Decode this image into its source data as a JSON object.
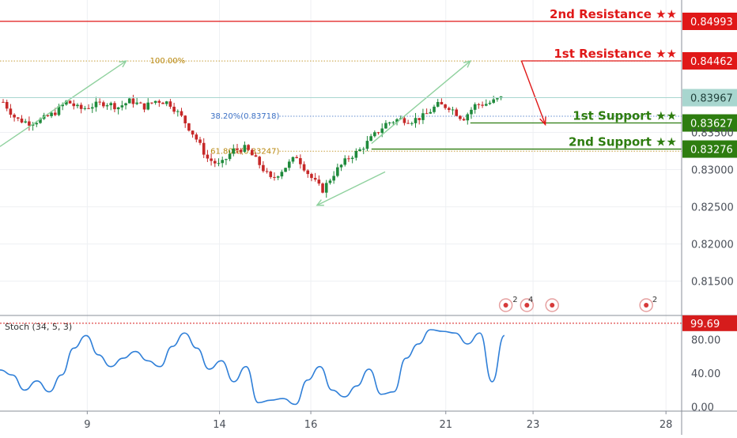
{
  "chart_data": [
    {
      "type": "candlestick",
      "xlabel": "",
      "ylabel": "",
      "x_ticks": [
        "9",
        "14",
        "16",
        "21",
        "23",
        "28"
      ],
      "y_ticks": [
        "0.83000",
        "0.82500",
        "0.82000",
        "0.81500",
        "0.83500"
      ],
      "ylim": [
        0.8105,
        0.8528
      ],
      "price_path": [
        0.8391,
        0.8368,
        0.8363,
        0.8367,
        0.8376,
        0.8392,
        0.8381,
        0.8386,
        0.839,
        0.8384,
        0.8393,
        0.8384,
        0.8393,
        0.839,
        0.837,
        0.8345,
        0.8315,
        0.8305,
        0.8326,
        0.8329,
        0.8309,
        0.8286,
        0.8302,
        0.8318,
        0.8292,
        0.8272,
        0.8297,
        0.8315,
        0.8327,
        0.8345,
        0.8362,
        0.8368,
        0.8366,
        0.8372,
        0.8387,
        0.8384,
        0.8368,
        0.8387,
        0.8389,
        0.8396
      ],
      "levels": [
        {
          "label": "2nd Resistance ★★",
          "value_label": "0.84993",
          "value": 0.84993,
          "color": "#e01818"
        },
        {
          "label": "1st Resistance ★★",
          "value_label": "0.84462",
          "value": 0.84462,
          "color": "#e01818"
        },
        {
          "label": "1st Support ★★",
          "value_label": "0.83627",
          "value": 0.83627,
          "color": "#2e7d10"
        },
        {
          "label": "2nd Support ★★",
          "value_label": "0.83276",
          "value": 0.83276,
          "color": "#2e7d10"
        }
      ],
      "current_price": {
        "value_label": "0.83967",
        "value": 0.83967,
        "color": "#a8d6cf"
      },
      "fibonacci": [
        {
          "label": "100.00%",
          "value": 0.8446,
          "color": "#b8860b"
        },
        {
          "label": "38.20%(0.83718)",
          "value": 0.83718,
          "color": "#3a6fc4"
        },
        {
          "label": "61.80%(0.83247)",
          "value": 0.83247,
          "color": "#b8860b"
        }
      ],
      "colors": {
        "up": "#1f8a3c",
        "down": "#c62828",
        "trend_arrow": "#8fd19e"
      },
      "event_markers": [
        "2",
        "4",
        "2"
      ]
    },
    {
      "type": "line",
      "title": "Stoch (34, 5, 3)",
      "y_ticks": [
        "80.00",
        "40.00",
        "0.00"
      ],
      "ylim": [
        -5,
        108
      ],
      "values": [
        44,
        38,
        20,
        31,
        18,
        38,
        70,
        85,
        62,
        48,
        58,
        66,
        55,
        48,
        72,
        88,
        70,
        45,
        55,
        30,
        48,
        5,
        8,
        10,
        3,
        32,
        48,
        20,
        12,
        25,
        45,
        15,
        18,
        58,
        75,
        92,
        90,
        88,
        75,
        88,
        30,
        85
      ],
      "overbought_label": "99.69",
      "overbought_value": 99.69,
      "line_color": "#2f7fd8",
      "ob_color": "#d61c1c"
    }
  ]
}
